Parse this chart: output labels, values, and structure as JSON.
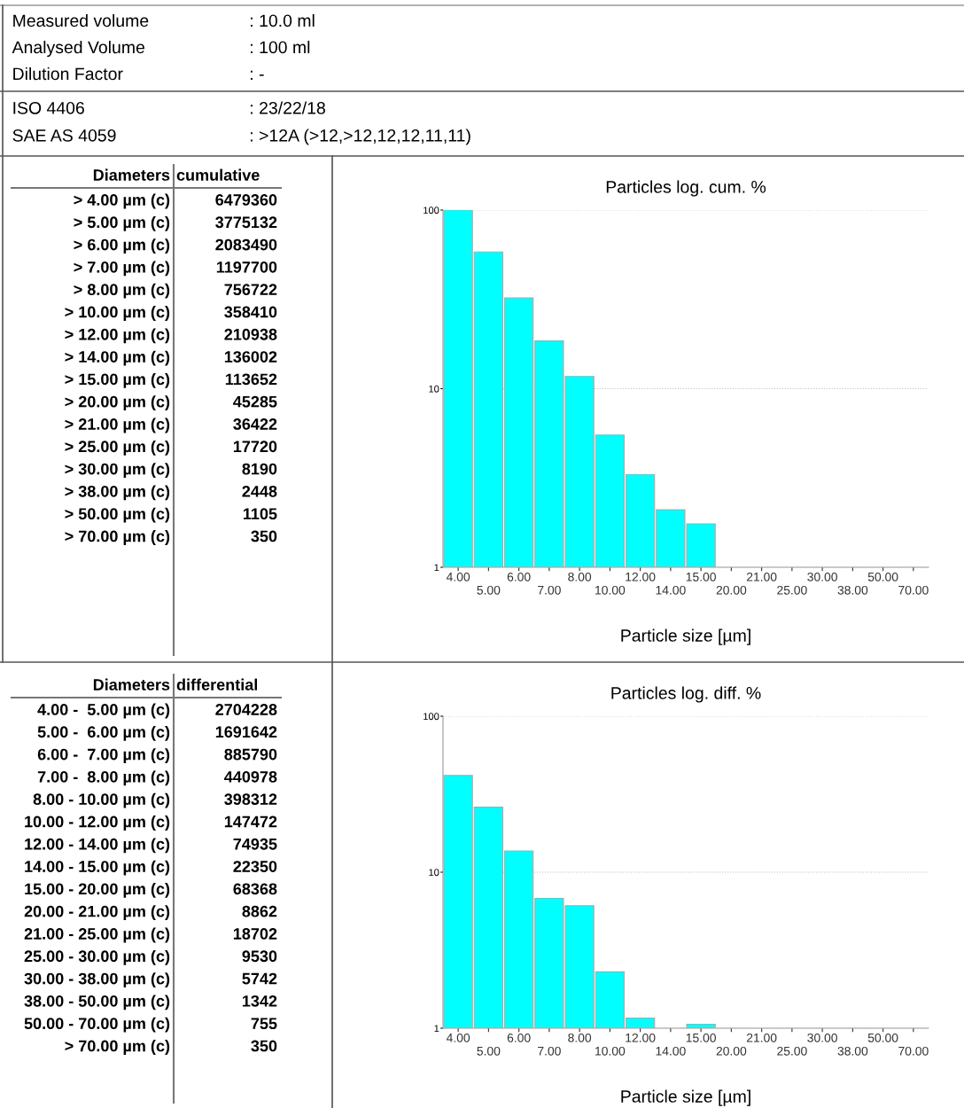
{
  "chart_data": [
    {
      "type": "other",
      "annotations": [
        "Measured volume",
        ": 10.0 ml",
        "Analysed Volume",
        ": 100 ml",
        "Dilution Factor",
        ": -"
      ]
    },
    {
      "type": "other",
      "annotations": [
        "ISO 4406",
        ": 23/22/18",
        "SAE AS 4059",
        ": >12A (>12,>12,12,12,11,11)"
      ]
    },
    {
      "type": "other",
      "annotations": [
        "Diameters",
        "cumulative"
      ],
      "data_labels": true,
      "categories": [
        "> 4.00 µm (c)",
        "> 5.00 µm (c)",
        "> 6.00 µm (c)",
        "> 7.00 µm (c)",
        "> 8.00 µm (c)",
        "> 10.00 µm (c)",
        "> 12.00 µm (c)",
        "> 14.00 µm (c)",
        "> 15.00 µm (c)",
        "> 20.00 µm (c)",
        "> 21.00 µm (c)",
        "> 25.00 µm (c)",
        "> 30.00 µm (c)",
        "> 38.00 µm (c)",
        "> 50.00 µm (c)",
        "> 70.00 µm (c)"
      ],
      "values": [
        6479360,
        3775132,
        2083490,
        1197700,
        756722,
        358410,
        210938,
        136002,
        113652,
        45285,
        36422,
        17720,
        8190,
        2448,
        1105,
        350
      ]
    },
    {
      "type": "bar",
      "title": "Particles log. cum. %",
      "xlabel": "Particle size [µm]",
      "log": true,
      "grid": "y",
      "color": "#00ffff",
      "categories": [
        "4.00",
        "5.00",
        "6.00",
        "7.00",
        "8.00",
        "10.00",
        "12.00",
        "14.00",
        "15.00",
        "20.00",
        "21.00",
        "25.00",
        "30.00",
        "38.00",
        "50.00",
        "70.00"
      ],
      "values": [
        100,
        58.3,
        32.2,
        18.5,
        11.7,
        5.5,
        3.3,
        2.1,
        1.75,
        null,
        null,
        null,
        null,
        null,
        null,
        null
      ],
      "ylim": [
        1,
        100
      ],
      "yticks": [
        1,
        10,
        100
      ]
    },
    {
      "type": "other",
      "annotations": [
        "Diameters",
        "differential"
      ],
      "data_labels": true,
      "categories": [
        "4.00 -  5.00 µm (c)",
        "5.00 -  6.00 µm (c)",
        "6.00 -  7.00 µm (c)",
        "7.00 -  8.00 µm (c)",
        "8.00 - 10.00 µm (c)",
        "10.00 - 12.00 µm (c)",
        "12.00 - 14.00 µm (c)",
        "14.00 - 15.00 µm (c)",
        "15.00 - 20.00 µm (c)",
        "20.00 - 21.00 µm (c)",
        "21.00 - 25.00 µm (c)",
        "25.00 - 30.00 µm (c)",
        "30.00 - 38.00 µm (c)",
        "38.00 - 50.00 µm (c)",
        "50.00 - 70.00 µm (c)",
        "> 70.00 µm (c)"
      ],
      "values": [
        2704228,
        1691642,
        885790,
        440978,
        398312,
        147472,
        74935,
        22350,
        68368,
        8862,
        18702,
        9530,
        5742,
        1342,
        755,
        350
      ]
    },
    {
      "type": "bar",
      "title": "Particles log. diff. %",
      "xlabel": "Particle size [µm]",
      "log": true,
      "grid": "y",
      "color": "#00ffff",
      "categories": [
        "4.00",
        "5.00",
        "6.00",
        "7.00",
        "8.00",
        "10.00",
        "12.00",
        "14.00",
        "15.00",
        "20.00",
        "21.00",
        "25.00",
        "30.00",
        "38.00",
        "50.00",
        "70.00"
      ],
      "values": [
        41.7,
        26.1,
        13.7,
        6.8,
        6.1,
        2.3,
        1.16,
        null,
        1.06,
        null,
        null,
        null,
        null,
        null,
        null,
        null
      ],
      "ylim": [
        1,
        100
      ],
      "yticks": [
        1,
        10,
        100
      ]
    }
  ]
}
